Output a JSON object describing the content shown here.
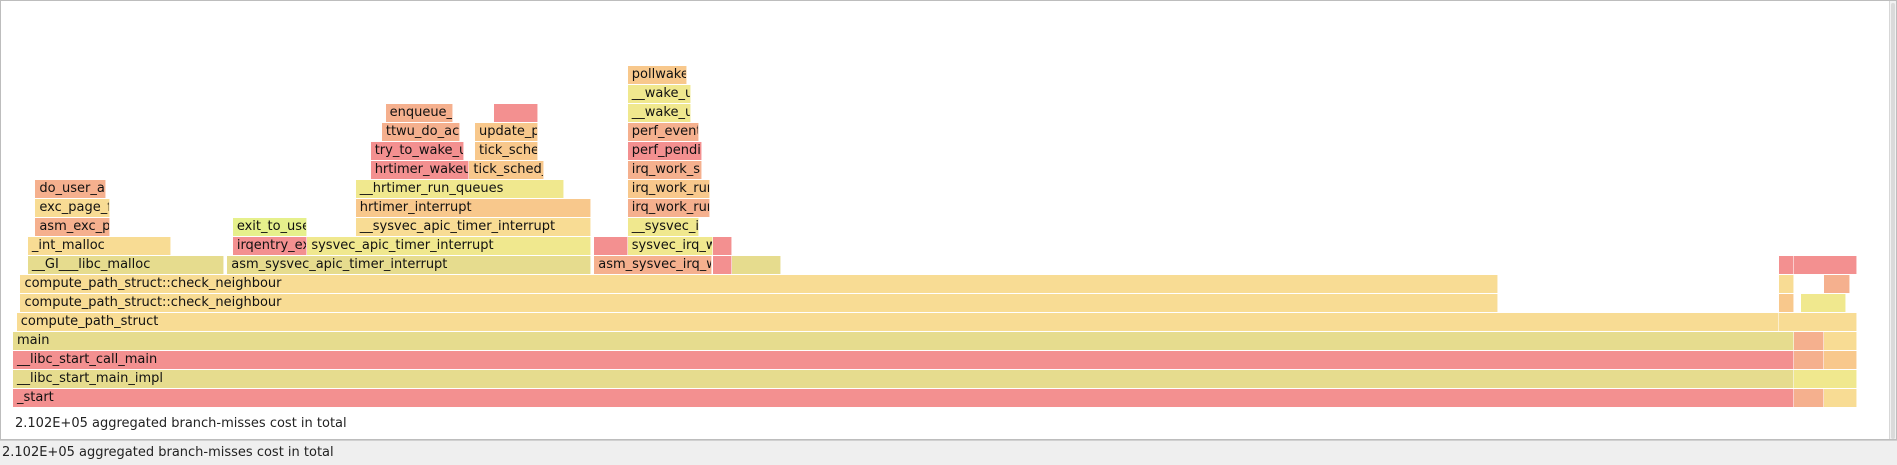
{
  "app": {
    "window_title": "",
    "summary_in_view": "2.102E+05 aggregated branch-misses cost in total",
    "status_bar_text": "2.102E+05 aggregated branch-misses cost in total"
  },
  "palette": {
    "red": "#f39090",
    "salmon": "#f5b08e",
    "orange": "#f8c88c",
    "tan": "#f8dc94",
    "olive": "#e6dc8e",
    "yellow": "#f0e88e",
    "green_yellow": "#e6f08c"
  },
  "flamegraph": {
    "metric": "branch-misses",
    "total_cost": "2.102E+05",
    "frames": [
      {
        "name": "_start",
        "depth": 0,
        "start": 0.0,
        "width": 0.956,
        "color": "red"
      },
      {
        "name": "__libc_start_main_impl",
        "depth": 1,
        "start": 0.0,
        "width": 0.956,
        "color": "olive"
      },
      {
        "name": "__libc_start_call_main",
        "depth": 2,
        "start": 0.0,
        "width": 0.956,
        "color": "red"
      },
      {
        "name": "main",
        "depth": 3,
        "start": 0.0,
        "width": 0.956,
        "color": "olive"
      },
      {
        "name": "compute_path_struct",
        "depth": 4,
        "start": 0.002,
        "width": 0.946,
        "color": "tan"
      },
      {
        "name": "compute_path_struct::check_neighbour",
        "depth": 5,
        "start": 0.004,
        "width": 0.793,
        "color": "tan"
      },
      {
        "name": "compute_path_struct::check_neighbour",
        "depth": 6,
        "start": 0.004,
        "width": 0.793,
        "color": "tan"
      },
      {
        "name": "__GI___libc_malloc",
        "depth": 7,
        "start": 0.008,
        "width": 0.105,
        "color": "olive"
      },
      {
        "name": "asm_sysvec_apic_timer_interrupt",
        "depth": 7,
        "start": 0.115,
        "width": 0.195,
        "color": "olive"
      },
      {
        "name": "asm_sysvec_irq_work",
        "depth": 7,
        "start": 0.312,
        "width": 0.063,
        "color": "salmon"
      },
      {
        "name": "",
        "depth": 7,
        "start": 0.376,
        "width": 0.01,
        "color": "red"
      },
      {
        "name": "",
        "depth": 7,
        "start": 0.386,
        "width": 0.026,
        "color": "olive"
      },
      {
        "name": "_int_malloc",
        "depth": 8,
        "start": 0.008,
        "width": 0.077,
        "color": "tan"
      },
      {
        "name": "irqentry_exit",
        "depth": 8,
        "start": 0.118,
        "width": 0.04,
        "color": "red"
      },
      {
        "name": "sysvec_apic_timer_interrupt",
        "depth": 8,
        "start": 0.158,
        "width": 0.152,
        "color": "yellow"
      },
      {
        "name": "",
        "depth": 8,
        "start": 0.312,
        "width": 0.018,
        "color": "red"
      },
      {
        "name": "sysvec_irq_work",
        "depth": 8,
        "start": 0.33,
        "width": 0.046,
        "color": "yellow"
      },
      {
        "name": "",
        "depth": 8,
        "start": 0.376,
        "width": 0.01,
        "color": "red"
      },
      {
        "name": "asm_exc_page_fault",
        "depth": 9,
        "start": 0.012,
        "width": 0.04,
        "color": "salmon"
      },
      {
        "name": "exit_to_user_mode",
        "depth": 9,
        "start": 0.118,
        "width": 0.04,
        "color": "green_yellow"
      },
      {
        "name": "__sysvec_apic_timer_interrupt",
        "depth": 9,
        "start": 0.184,
        "width": 0.126,
        "color": "tan"
      },
      {
        "name": "__sysvec_irq_work",
        "depth": 9,
        "start": 0.33,
        "width": 0.038,
        "color": "yellow"
      },
      {
        "name": "exc_page_fault",
        "depth": 10,
        "start": 0.012,
        "width": 0.04,
        "color": "tan"
      },
      {
        "name": "hrtimer_interrupt",
        "depth": 10,
        "start": 0.184,
        "width": 0.126,
        "color": "orange"
      },
      {
        "name": "irq_work_run",
        "depth": 10,
        "start": 0.33,
        "width": 0.044,
        "color": "salmon"
      },
      {
        "name": "do_user_addr_fault",
        "depth": 11,
        "start": 0.012,
        "width": 0.038,
        "color": "salmon"
      },
      {
        "name": "__hrtimer_run_queues",
        "depth": 11,
        "start": 0.184,
        "width": 0.112,
        "color": "yellow"
      },
      {
        "name": "irq_work_run_list",
        "depth": 11,
        "start": 0.33,
        "width": 0.044,
        "color": "orange"
      },
      {
        "name": "hrtimer_wakeup",
        "depth": 12,
        "start": 0.192,
        "width": 0.053,
        "color": "red"
      },
      {
        "name": "tick_sched_timer",
        "depth": 12,
        "start": 0.245,
        "width": 0.04,
        "color": "orange"
      },
      {
        "name": "irq_work_single",
        "depth": 12,
        "start": 0.33,
        "width": 0.04,
        "color": "salmon"
      },
      {
        "name": "try_to_wake_up",
        "depth": 13,
        "start": 0.192,
        "width": 0.05,
        "color": "red"
      },
      {
        "name": "tick_sched_handle",
        "depth": 13,
        "start": 0.248,
        "width": 0.034,
        "color": "orange"
      },
      {
        "name": "perf_pending_event",
        "depth": 13,
        "start": 0.33,
        "width": 0.04,
        "color": "red"
      },
      {
        "name": "ttwu_do_activate",
        "depth": 14,
        "start": 0.198,
        "width": 0.042,
        "color": "salmon"
      },
      {
        "name": "update_process_times",
        "depth": 14,
        "start": 0.248,
        "width": 0.034,
        "color": "orange"
      },
      {
        "name": "perf_event_wakeup",
        "depth": 14,
        "start": 0.33,
        "width": 0.038,
        "color": "salmon"
      },
      {
        "name": "enqueue_task",
        "depth": 15,
        "start": 0.2,
        "width": 0.036,
        "color": "salmon"
      },
      {
        "name": "",
        "depth": 15,
        "start": 0.258,
        "width": 0.024,
        "color": "red"
      },
      {
        "name": "__wake_up_common_lock",
        "depth": 15,
        "start": 0.33,
        "width": 0.034,
        "color": "yellow"
      },
      {
        "name": "__wake_up_common",
        "depth": 16,
        "start": 0.33,
        "width": 0.034,
        "color": "yellow"
      },
      {
        "name": "pollwake",
        "depth": 17,
        "start": 0.33,
        "width": 0.032,
        "color": "orange"
      },
      {
        "name": "",
        "depth": 7,
        "start": 0.948,
        "width": 0.008,
        "color": "red"
      },
      {
        "name": "",
        "depth": 7,
        "start": 0.956,
        "width": 0.034,
        "color": "red"
      },
      {
        "name": "",
        "depth": 6,
        "start": 0.948,
        "width": 0.008,
        "color": "tan"
      },
      {
        "name": "",
        "depth": 6,
        "start": 0.972,
        "width": 0.014,
        "color": "salmon"
      },
      {
        "name": "",
        "depth": 5,
        "start": 0.948,
        "width": 0.008,
        "color": "orange"
      },
      {
        "name": "",
        "depth": 5,
        "start": 0.96,
        "width": 0.024,
        "color": "yellow"
      },
      {
        "name": "",
        "depth": 4,
        "start": 0.948,
        "width": 0.042,
        "color": "tan"
      },
      {
        "name": "",
        "depth": 3,
        "start": 0.956,
        "width": 0.016,
        "color": "salmon"
      },
      {
        "name": "",
        "depth": 3,
        "start": 0.972,
        "width": 0.018,
        "color": "tan"
      },
      {
        "name": "",
        "depth": 2,
        "start": 0.956,
        "width": 0.016,
        "color": "salmon"
      },
      {
        "name": "",
        "depth": 2,
        "start": 0.972,
        "width": 0.018,
        "color": "orange"
      },
      {
        "name": "",
        "depth": 1,
        "start": 0.956,
        "width": 0.034,
        "color": "yellow"
      },
      {
        "name": "",
        "depth": 0,
        "start": 0.956,
        "width": 0.016,
        "color": "salmon"
      },
      {
        "name": "",
        "depth": 0,
        "start": 0.972,
        "width": 0.018,
        "color": "tan"
      }
    ]
  }
}
